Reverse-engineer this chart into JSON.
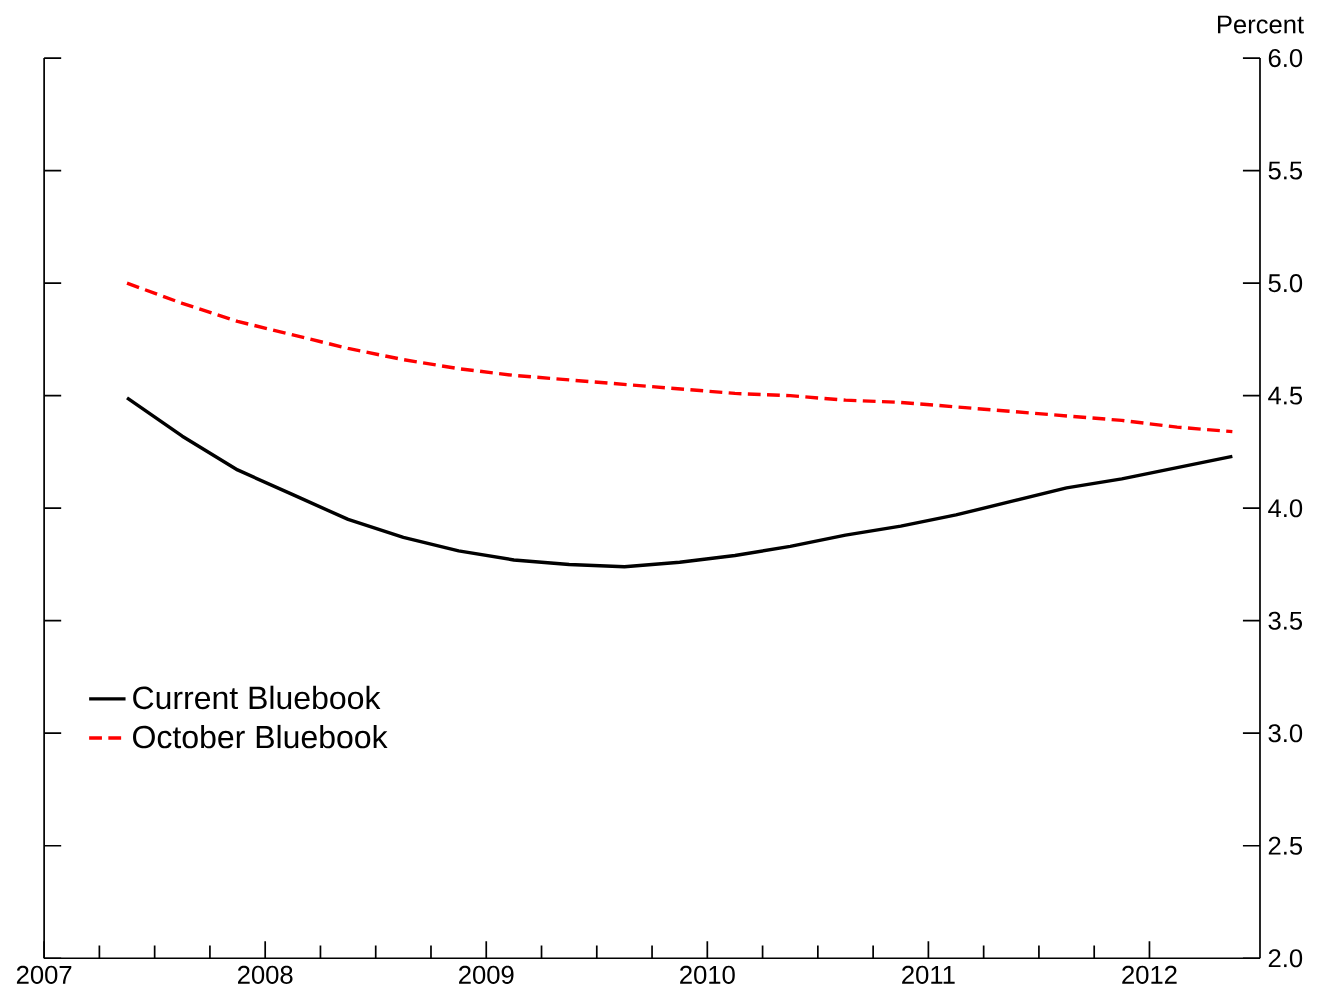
{
  "chart_data": {
    "type": "line",
    "ylabel": "Percent",
    "xlim": [
      2007,
      2012.5
    ],
    "ylim": [
      2.0,
      6.0
    ],
    "xticks": [
      2007,
      2008,
      2009,
      2010,
      2011,
      2012
    ],
    "yticks": [
      {
        "value": 2.0,
        "label": "2.0"
      },
      {
        "value": 2.5,
        "label": "2.5"
      },
      {
        "value": 3.0,
        "label": "3.0"
      },
      {
        "value": 3.5,
        "label": "3.5"
      },
      {
        "value": 4.0,
        "label": "4.0"
      },
      {
        "value": 4.5,
        "label": "4.5"
      },
      {
        "value": 5.0,
        "label": "5.0"
      },
      {
        "value": 5.5,
        "label": "5.5"
      },
      {
        "value": 6.0,
        "label": "6.0"
      }
    ],
    "x": [
      2007.375,
      2007.625,
      2007.875,
      2008.125,
      2008.375,
      2008.625,
      2008.875,
      2009.125,
      2009.375,
      2009.625,
      2009.875,
      2010.125,
      2010.375,
      2010.625,
      2010.875,
      2011.125,
      2011.375,
      2011.625,
      2011.875,
      2012.125,
      2012.375
    ],
    "series": [
      {
        "name": "Current Bluebook",
        "color": "#000000",
        "line_style": "solid",
        "values": [
          4.49,
          4.32,
          4.17,
          4.06,
          3.95,
          3.87,
          3.81,
          3.77,
          3.75,
          3.74,
          3.76,
          3.79,
          3.83,
          3.88,
          3.92,
          3.97,
          4.03,
          4.09,
          4.13,
          4.18,
          4.23
        ]
      },
      {
        "name": "October Bluebook",
        "color": "#ff0000",
        "line_style": "dashed",
        "values": [
          5.0,
          4.91,
          4.83,
          4.77,
          4.71,
          4.66,
          4.62,
          4.59,
          4.57,
          4.55,
          4.53,
          4.51,
          4.5,
          4.48,
          4.47,
          4.45,
          4.43,
          4.41,
          4.39,
          4.36,
          4.34
        ]
      }
    ],
    "legend": "bottom left",
    "grid": false,
    "marker": "none"
  }
}
